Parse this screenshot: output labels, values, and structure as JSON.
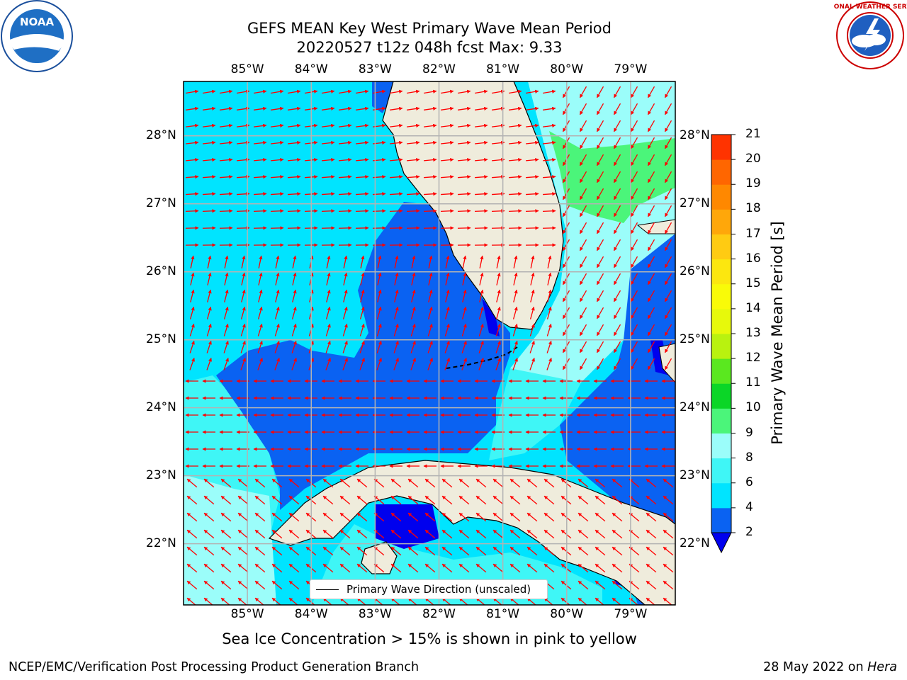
{
  "header": {
    "title_line1": "GEFS MEAN Key West Primary Wave Mean Period",
    "title_line2": "20220527 t12z 048h fcst   Max: 9.33"
  },
  "map": {
    "lon_labels": [
      "85°W",
      "84°W",
      "83°W",
      "82°W",
      "81°W",
      "80°W",
      "79°W"
    ],
    "lat_labels": [
      "28°N",
      "27°N",
      "26°N",
      "25°N",
      "24°N",
      "23°N",
      "22°N"
    ],
    "extent": {
      "lon": [
        -86.0,
        -78.3
      ],
      "lat": [
        21.1,
        28.8
      ]
    },
    "gridlines": true,
    "land_color": "#efecdc",
    "arrow_color": "#ff0000",
    "legend_label": "Primary Wave Direction (unscaled)"
  },
  "colorbar": {
    "label": "Primary Wave Mean Period [s]",
    "ticks": [
      "2",
      "4",
      "6",
      "8",
      "9",
      "10",
      "11",
      "12",
      "13",
      "14",
      "15",
      "16",
      "17",
      "18",
      "19",
      "20",
      "21"
    ],
    "colors": [
      "#0a62f2",
      "#00e4ff",
      "#3ff6f6",
      "#9bfdfa",
      "#4bf57a",
      "#0bd627",
      "#5ae81f",
      "#b9f20f",
      "#e7f90b",
      "#f9fb08",
      "#fce70f",
      "#ffcb12",
      "#ffa70a",
      "#ff8800",
      "#ff6600",
      "#ff3300"
    ],
    "under_color": "#0000ee"
  },
  "footer": {
    "sea_ice_note": "Sea Ice Concentration > 15% is shown in pink to yellow",
    "left": "NCEP/EMC/Verification Post Processing Product Generation Branch",
    "right_prefix": "28 May 2022 on ",
    "right_host": "Hera"
  },
  "logos": {
    "noaa_text": "NOAA",
    "nws_text": "NATIONAL WEATHER SERVICE"
  }
}
